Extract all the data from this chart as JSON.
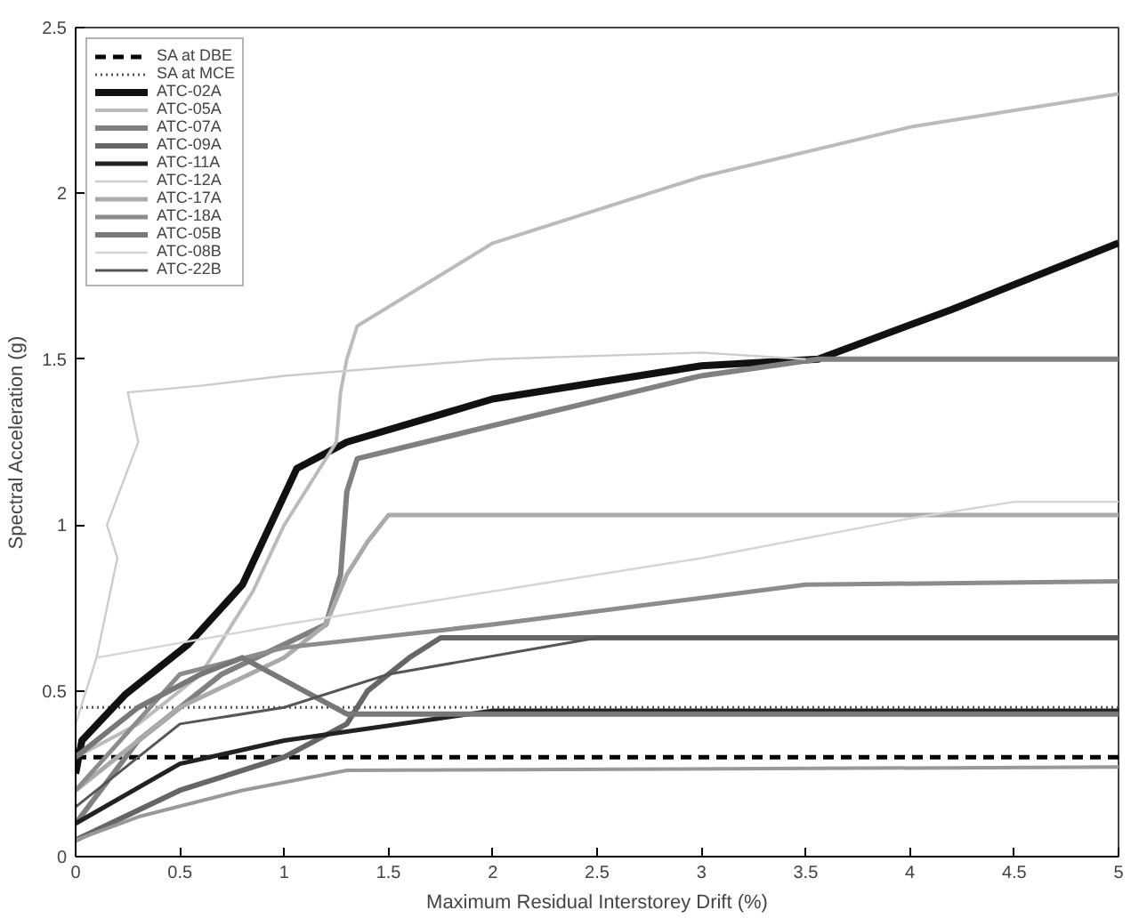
{
  "chart_data": {
    "type": "line",
    "xlabel": "Maximum Residual Interstorey Drift (%)",
    "ylabel": "Spectral Acceleration (g)",
    "xlim": [
      0,
      5
    ],
    "ylim": [
      0,
      2.5
    ],
    "xticks": [
      0,
      0.5,
      1,
      1.5,
      2,
      2.5,
      3,
      3.5,
      4,
      4.5,
      5
    ],
    "yticks": [
      0,
      0.5,
      1,
      1.5,
      2,
      2.5
    ],
    "grid": false,
    "legend": "top left",
    "marker": "none",
    "series": [
      {
        "name": "SA at DBE",
        "color": "#000000",
        "line_style": "dashed",
        "x": [
          0,
          5
        ],
        "values": [
          0.3,
          0.3
        ]
      },
      {
        "name": "SA at MCE",
        "color": "#555555",
        "line_style": "dotted",
        "x": [
          0,
          5
        ],
        "values": [
          0.45,
          0.45
        ]
      },
      {
        "name": "ATC-02A",
        "color": "#111111",
        "x": [
          0,
          0.03,
          0.24,
          0.54,
          0.8,
          1.06,
          1.3,
          2,
          3,
          3.56,
          4.2,
          5
        ],
        "values": [
          0.25,
          0.35,
          0.49,
          0.64,
          0.82,
          1.17,
          1.25,
          1.38,
          1.48,
          1.5,
          1.65,
          1.85
        ]
      },
      {
        "name": "ATC-05A",
        "color": "#bbbbbb",
        "x": [
          0,
          0.3,
          0.6,
          0.85,
          1.0,
          1.25,
          1.27,
          1.3,
          1.35,
          2,
          3,
          4,
          5
        ],
        "values": [
          0.3,
          0.4,
          0.55,
          0.8,
          1.0,
          1.25,
          1.4,
          1.5,
          1.6,
          1.85,
          2.05,
          2.2,
          2.3
        ]
      },
      {
        "name": "ATC-07A",
        "color": "#808080",
        "x": [
          0,
          0.3,
          0.7,
          1.2,
          1.27,
          1.3,
          1.35,
          2,
          3,
          3.56,
          5
        ],
        "values": [
          0.1,
          0.35,
          0.55,
          0.7,
          0.85,
          1.1,
          1.2,
          1.3,
          1.45,
          1.5,
          1.5
        ]
      },
      {
        "name": "ATC-09A",
        "color": "#666666",
        "x": [
          0,
          0.5,
          1,
          1.3,
          1.4,
          1.6,
          1.75,
          5
        ],
        "values": [
          0.05,
          0.2,
          0.3,
          0.4,
          0.5,
          0.6,
          0.66,
          0.66
        ]
      },
      {
        "name": "ATC-11A",
        "color": "#222222",
        "x": [
          0,
          0.5,
          1,
          2,
          5
        ],
        "values": [
          0.1,
          0.28,
          0.35,
          0.44,
          0.44
        ]
      },
      {
        "name": "ATC-12A",
        "color": "#cccccc",
        "x": [
          0,
          0.1,
          0.2,
          0.15,
          0.3,
          0.25,
          0.6,
          1,
          2,
          3,
          3.5
        ],
        "values": [
          0.4,
          0.6,
          0.9,
          1.0,
          1.25,
          1.4,
          1.42,
          1.45,
          1.5,
          1.52,
          1.5
        ]
      },
      {
        "name": "ATC-17A",
        "color": "#aaaaaa",
        "x": [
          0,
          0.5,
          1,
          1.2,
          1.3,
          1.4,
          1.5,
          5
        ],
        "values": [
          0.2,
          0.45,
          0.6,
          0.7,
          0.85,
          0.95,
          1.03,
          1.03
        ]
      },
      {
        "name": "ATC-18A",
        "color": "#8c8c8c",
        "x": [
          0,
          0.5,
          1,
          2,
          3,
          3.5,
          5
        ],
        "values": [
          0.2,
          0.55,
          0.63,
          0.7,
          0.78,
          0.82,
          0.83
        ]
      },
      {
        "name": "ATC-05B",
        "color": "#777777",
        "x": [
          0,
          0.3,
          0.6,
          0.8,
          1.3,
          2,
          5
        ],
        "values": [
          0.3,
          0.45,
          0.55,
          0.6,
          0.43,
          0.43,
          0.43
        ]
      },
      {
        "name": "ATC-08B",
        "color": "#d5d5d5",
        "x": [
          0.1,
          1,
          2,
          3,
          4,
          4.5,
          5
        ],
        "values": [
          0.6,
          0.7,
          0.8,
          0.9,
          1.02,
          1.07,
          1.07
        ]
      },
      {
        "name": "ATC-22B",
        "color": "#555555",
        "x": [
          0,
          0.5,
          1,
          1.5,
          2.5,
          5
        ],
        "values": [
          0.15,
          0.4,
          0.45,
          0.55,
          0.66,
          0.66
        ]
      },
      {
        "color": "#999999",
        "x": [
          0,
          0.3,
          0.8,
          1.3,
          5
        ],
        "values": [
          0.05,
          0.12,
          0.2,
          0.26,
          0.27
        ]
      }
    ]
  }
}
